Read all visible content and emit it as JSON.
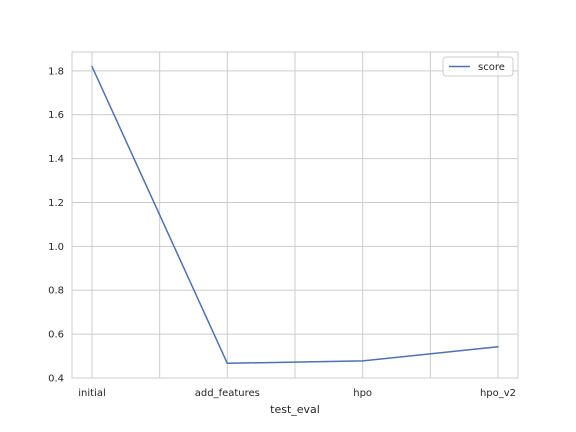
{
  "chart_data": {
    "type": "line",
    "categories": [
      "initial",
      "add_features",
      "hpo",
      "hpo_v2"
    ],
    "series": [
      {
        "name": "score",
        "values": [
          1.82,
          0.467,
          0.478,
          0.542
        ],
        "color": "#4c72b0"
      }
    ],
    "xlabel": "test_eval",
    "ylabel": "",
    "ylim": [
      0.4,
      1.886
    ],
    "yticks": [
      0.4,
      0.6,
      0.8,
      1.0,
      1.2,
      1.4,
      1.6,
      1.8
    ],
    "ytick_labels": [
      "0.4",
      "0.6",
      "0.8",
      "1.0",
      "1.2",
      "1.4",
      "1.6",
      "1.8"
    ],
    "x_minor_grid": true,
    "grid": true,
    "legend": "top-right"
  }
}
